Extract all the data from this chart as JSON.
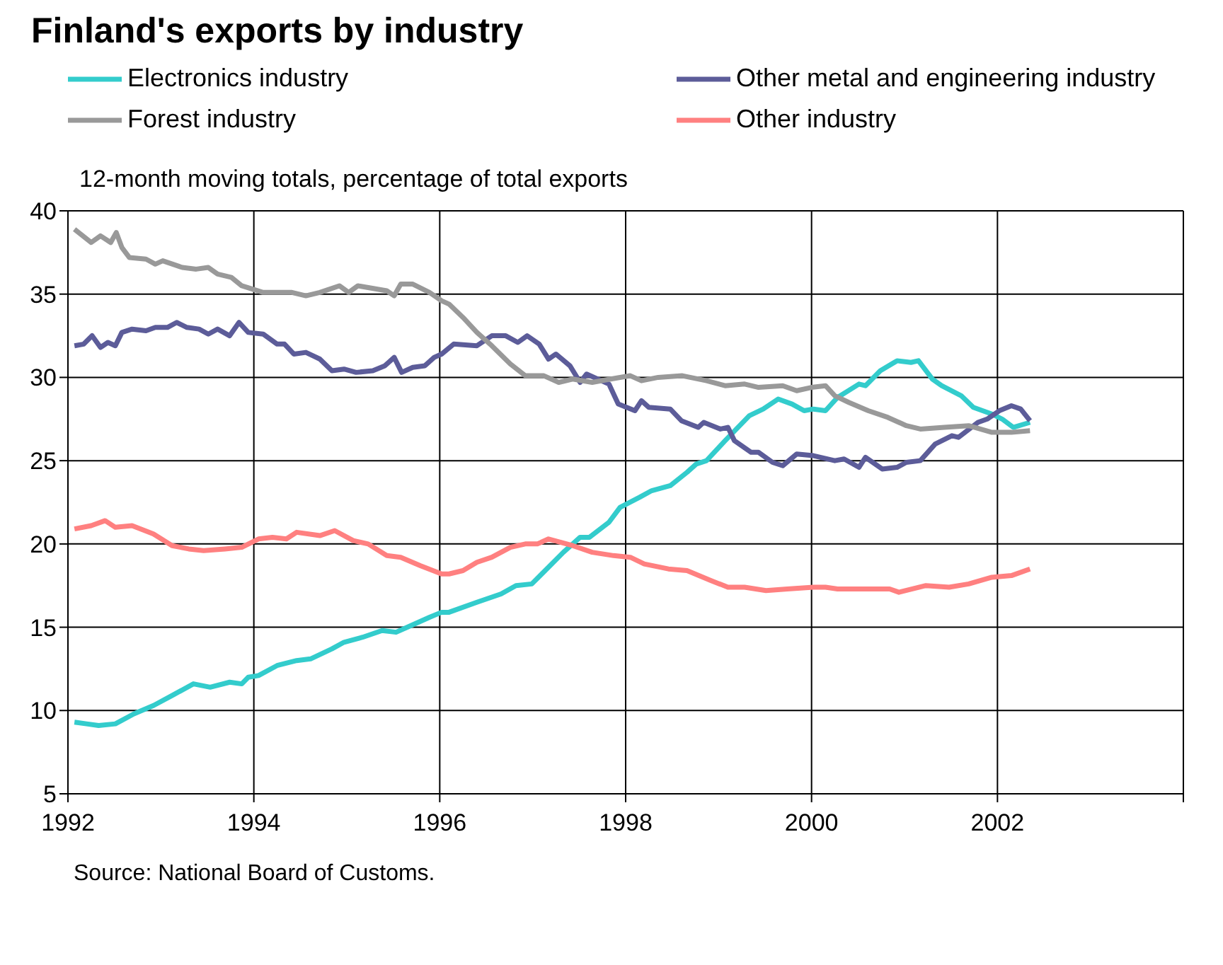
{
  "chart_data": {
    "type": "line",
    "title": "Finland's exports by industry",
    "ylabel": "12-month moving totals, percentage of total exports",
    "annotations": [
      "Source: National Board of Customs."
    ],
    "xlim": [
      1992,
      2004
    ],
    "xticks": [
      1992,
      1994,
      1996,
      1998,
      2000,
      2002,
      {
        "value": 2004,
        "label": null
      }
    ],
    "ylim": [
      5,
      40
    ],
    "yticks": [
      5,
      10,
      15,
      20,
      25,
      30,
      35,
      40
    ],
    "grid": true,
    "legend": "top",
    "series": [
      {
        "name": "Electronics industry",
        "color": "#33cccc",
        "x": [
          1992.07,
          1992.2,
          1992.33,
          1992.51,
          1992.71,
          1992.92,
          1993.12,
          1993.35,
          1993.53,
          1993.74,
          1993.87,
          1993.94,
          1994.05,
          1994.25,
          1994.46,
          1994.61,
          1994.84,
          1994.97,
          1995.17,
          1995.38,
          1995.53,
          1995.69,
          1995.89,
          1996.02,
          1996.1,
          1996.4,
          1996.66,
          1996.82,
          1996.99,
          1997.17,
          1997.33,
          1997.51,
          1997.61,
          1997.82,
          1997.94,
          1998.15,
          1998.28,
          1998.48,
          1998.66,
          1998.76,
          1998.87,
          1999.07,
          1999.33,
          1999.48,
          1999.64,
          1999.79,
          1999.92,
          2000.02,
          2000.15,
          2000.28,
          2000.51,
          2000.58,
          2000.74,
          2000.92,
          2001.07,
          2001.15,
          2001.3,
          2001.4,
          2001.61,
          2001.74,
          2001.94,
          2002.05,
          2002.17,
          2002.35
        ],
        "values": [
          9.3,
          9.2,
          9.1,
          9.2,
          9.8,
          10.3,
          10.9,
          11.6,
          11.4,
          11.7,
          11.6,
          12.0,
          12.1,
          12.7,
          13.0,
          13.1,
          13.7,
          14.1,
          14.4,
          14.8,
          14.7,
          15.1,
          15.6,
          15.9,
          15.9,
          16.5,
          17.0,
          17.5,
          17.6,
          18.6,
          19.5,
          20.4,
          20.4,
          21.3,
          22.2,
          22.8,
          23.2,
          23.5,
          24.3,
          24.8,
          25.0,
          26.2,
          27.7,
          28.1,
          28.7,
          28.4,
          28.0,
          28.1,
          28.0,
          28.8,
          29.6,
          29.5,
          30.4,
          31.0,
          30.9,
          31.0,
          29.9,
          29.5,
          28.9,
          28.2,
          27.8,
          27.5,
          27.0,
          27.3
        ]
      },
      {
        "name": "Other metal and engineering industry",
        "color": "#5c5c99",
        "x": [
          1992.07,
          1992.17,
          1992.26,
          1992.35,
          1992.43,
          1992.51,
          1992.58,
          1992.69,
          1992.84,
          1992.94,
          1993.07,
          1993.17,
          1993.28,
          1993.41,
          1993.51,
          1993.61,
          1993.74,
          1993.84,
          1993.94,
          1994.1,
          1994.25,
          1994.33,
          1994.43,
          1994.56,
          1994.71,
          1994.84,
          1994.97,
          1995.1,
          1995.28,
          1995.41,
          1995.51,
          1995.59,
          1995.71,
          1995.84,
          1995.94,
          1996.02,
          1996.15,
          1996.4,
          1996.56,
          1996.71,
          1996.84,
          1996.94,
          1997.07,
          1997.17,
          1997.25,
          1997.4,
          1997.51,
          1997.58,
          1997.82,
          1997.92,
          1998.1,
          1998.17,
          1998.25,
          1998.48,
          1998.6,
          1998.78,
          1998.84,
          1999.02,
          1999.1,
          1999.17,
          1999.35,
          1999.43,
          1999.58,
          1999.69,
          1999.84,
          2000.02,
          2000.25,
          2000.35,
          2000.51,
          2000.58,
          2000.76,
          2000.92,
          2001.02,
          2001.17,
          2001.33,
          2001.51,
          2001.58,
          2001.79,
          2001.89,
          2002.02,
          2002.15,
          2002.25,
          2002.35
        ],
        "values": [
          31.9,
          32.0,
          32.5,
          31.8,
          32.1,
          31.9,
          32.7,
          32.9,
          32.8,
          33.0,
          33.0,
          33.3,
          33.0,
          32.9,
          32.6,
          32.9,
          32.5,
          33.3,
          32.7,
          32.6,
          32.0,
          32.0,
          31.4,
          31.5,
          31.1,
          30.4,
          30.5,
          30.3,
          30.4,
          30.7,
          31.2,
          30.3,
          30.6,
          30.7,
          31.2,
          31.4,
          32.0,
          31.9,
          32.5,
          32.5,
          32.1,
          32.5,
          32.0,
          31.1,
          31.4,
          30.7,
          29.7,
          30.2,
          29.6,
          28.4,
          28.0,
          28.6,
          28.2,
          28.1,
          27.4,
          27.0,
          27.3,
          26.9,
          27.0,
          26.2,
          25.5,
          25.5,
          24.9,
          24.7,
          25.4,
          25.3,
          25.0,
          25.1,
          24.6,
          25.2,
          24.5,
          24.6,
          24.9,
          25.0,
          26.0,
          26.5,
          26.4,
          27.3,
          27.5,
          28.0,
          28.3,
          28.1,
          27.4
        ]
      },
      {
        "name": "Forest industry",
        "color": "#999999",
        "x": [
          1992.07,
          1992.25,
          1992.35,
          1992.46,
          1992.52,
          1992.58,
          1992.66,
          1992.84,
          1992.94,
          1993.02,
          1993.23,
          1993.38,
          1993.51,
          1993.61,
          1993.76,
          1993.87,
          1994.1,
          1994.41,
          1994.56,
          1994.71,
          1994.92,
          1995.02,
          1995.12,
          1995.43,
          1995.51,
          1995.58,
          1995.71,
          1995.89,
          1996.02,
          1996.1,
          1996.25,
          1996.4,
          1996.56,
          1996.76,
          1996.92,
          1997.12,
          1997.28,
          1997.43,
          1997.64,
          1997.84,
          1998.05,
          1998.17,
          1998.35,
          1998.61,
          1998.87,
          1999.07,
          1999.28,
          1999.43,
          1999.69,
          1999.84,
          2000.0,
          2000.15,
          2000.25,
          2000.4,
          2000.61,
          2000.82,
          2001.02,
          2001.17,
          2001.43,
          2001.69,
          2001.94,
          2002.15,
          2002.35
        ],
        "values": [
          38.9,
          38.1,
          38.5,
          38.1,
          38.7,
          37.8,
          37.2,
          37.1,
          36.8,
          37.0,
          36.6,
          36.5,
          36.6,
          36.2,
          36.0,
          35.5,
          35.1,
          35.1,
          34.9,
          35.1,
          35.5,
          35.1,
          35.5,
          35.2,
          34.9,
          35.6,
          35.6,
          35.1,
          34.6,
          34.4,
          33.6,
          32.7,
          31.9,
          30.8,
          30.1,
          30.1,
          29.7,
          29.9,
          29.7,
          29.9,
          30.1,
          29.8,
          30.0,
          30.1,
          29.8,
          29.5,
          29.6,
          29.4,
          29.5,
          29.2,
          29.4,
          29.5,
          28.9,
          28.5,
          28.0,
          27.6,
          27.1,
          26.9,
          27.0,
          27.1,
          26.7,
          26.7,
          26.8
        ]
      },
      {
        "name": "Other industry",
        "color": "#ff8080",
        "x": [
          1992.07,
          1992.25,
          1992.4,
          1992.51,
          1992.69,
          1992.92,
          1993.12,
          1993.3,
          1993.46,
          1993.69,
          1993.87,
          1994.05,
          1994.2,
          1994.35,
          1994.46,
          1994.71,
          1994.87,
          1995.07,
          1995.23,
          1995.43,
          1995.58,
          1995.79,
          1996.02,
          1996.1,
          1996.25,
          1996.4,
          1996.56,
          1996.76,
          1996.92,
          1997.05,
          1997.17,
          1997.43,
          1997.64,
          1997.87,
          1998.05,
          1998.2,
          1998.46,
          1998.66,
          1998.92,
          1999.1,
          1999.28,
          1999.51,
          1999.74,
          2000.02,
          2000.15,
          2000.28,
          2000.51,
          2000.84,
          2000.94,
          2001.23,
          2001.48,
          2001.69,
          2001.94,
          2002.15,
          2002.35
        ],
        "values": [
          20.9,
          21.1,
          21.4,
          21.0,
          21.1,
          20.6,
          19.9,
          19.7,
          19.6,
          19.7,
          19.8,
          20.3,
          20.4,
          20.3,
          20.7,
          20.5,
          20.8,
          20.2,
          20.0,
          19.3,
          19.2,
          18.7,
          18.2,
          18.2,
          18.4,
          18.9,
          19.2,
          19.8,
          20.0,
          20.0,
          20.3,
          19.9,
          19.5,
          19.3,
          19.2,
          18.8,
          18.5,
          18.4,
          17.8,
          17.4,
          17.4,
          17.2,
          17.3,
          17.4,
          17.4,
          17.3,
          17.3,
          17.3,
          17.1,
          17.5,
          17.4,
          17.6,
          18.0,
          18.1,
          18.5
        ]
      }
    ]
  }
}
